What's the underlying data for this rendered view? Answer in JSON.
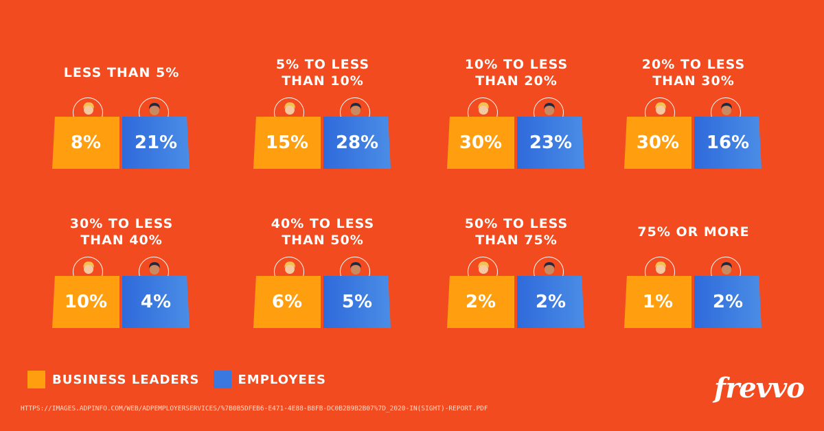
{
  "chart_data": {
    "type": "bar",
    "categories": [
      "Less than 5%",
      "5% to less than 10%",
      "10% to less than 20%",
      "20% to less than 30%",
      "30% to less than 40%",
      "40% to less than 50%",
      "50% to less than 75%",
      "75% or more"
    ],
    "series": [
      {
        "name": "Business Leaders",
        "color": "#FF9F0F",
        "values": [
          8,
          15,
          30,
          30,
          10,
          6,
          2,
          1
        ]
      },
      {
        "name": "Employees",
        "color": "#3A78E0",
        "values": [
          21,
          28,
          23,
          16,
          4,
          5,
          2,
          2
        ]
      }
    ],
    "value_labels": {
      "business_leaders": [
        "8%",
        "15%",
        "30%",
        "30%",
        "10%",
        "6%",
        "2%",
        "1%"
      ],
      "employees": [
        "21%",
        "28%",
        "23%",
        "16%",
        "4%",
        "5%",
        "2%",
        "2%"
      ]
    },
    "category_labels": [
      "LESS THAN 5%",
      "5% TO LESS\nTHAN 10%",
      "10% TO LESS\nTHAN 20%",
      "20% TO LESS\nTHAN 30%",
      "30% TO LESS\nTHAN 40%",
      "40% TO LESS\nTHAN 50%",
      "50% TO LESS\nTHAN 75%",
      "75% OR MORE"
    ],
    "legend": [
      "BUSINESS LEADERS",
      "EMPLOYEES"
    ],
    "legend_placement": "bottom-left"
  },
  "legend": {
    "business_leaders_label": "BUSINESS LEADERS",
    "employees_label": "EMPLOYEES",
    "business_leaders_color": "#FF9F0F",
    "employees_color": "#3A78E0"
  },
  "source_url": "https://images.adpinfo.com/web/ADPEmployerServices/%7B0B5DFEB6-E471-4E88-B8FB-DC0B2B9B2B07%7D_2020-In(sight)-Report.pdf",
  "logo_text": "frevvo",
  "colors": {
    "background": "#F24B1F",
    "orange": "#FF9F0F",
    "blue": "#3A78E0"
  },
  "icons": [
    "business-leader-avatar-icon",
    "employee-avatar-icon"
  ]
}
